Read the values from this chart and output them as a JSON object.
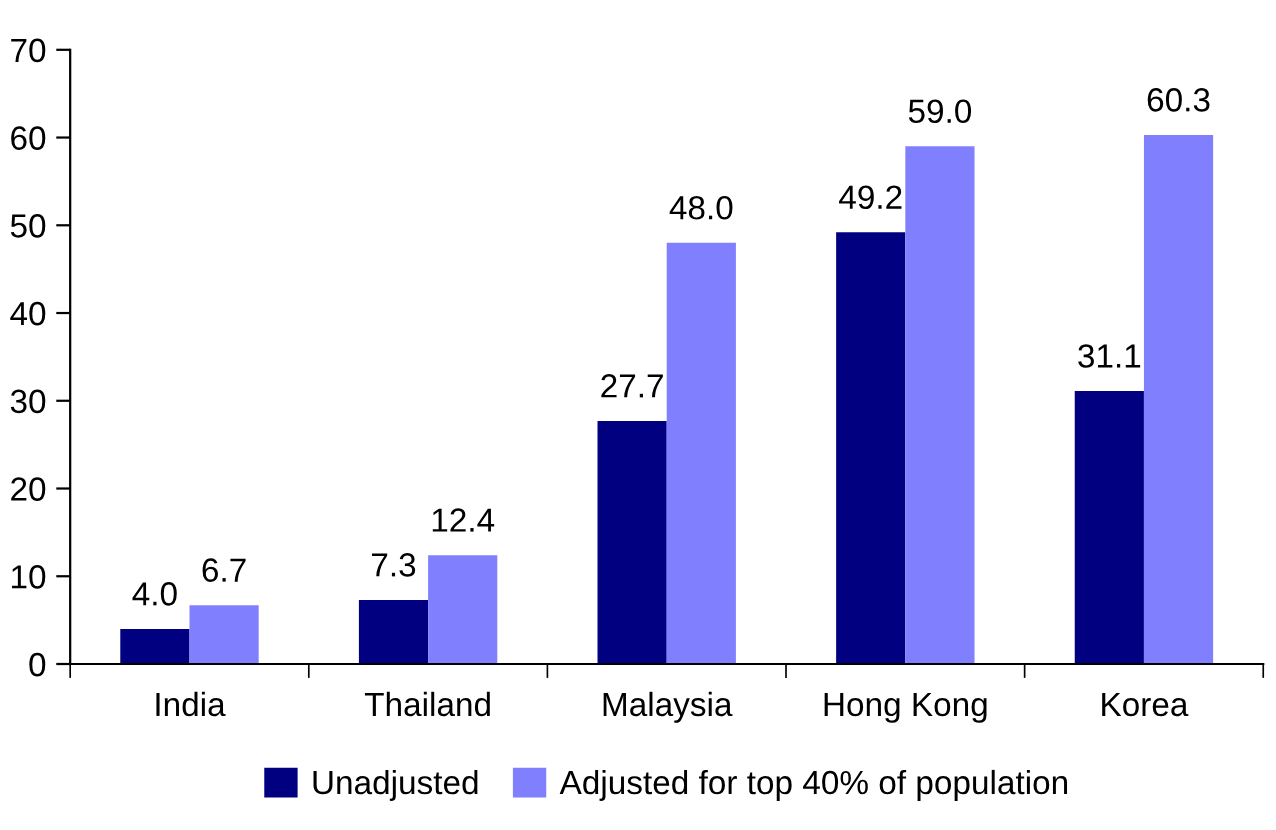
{
  "chart_data": {
    "type": "bar",
    "categories": [
      "India",
      "Thailand",
      "Malaysia",
      "Hong Kong",
      "Korea"
    ],
    "series": [
      {
        "name": "Unadjusted",
        "color": "#000080",
        "values": [
          4.0,
          7.3,
          27.7,
          49.2,
          31.1
        ],
        "value_labels": [
          "4.0",
          "7.3",
          "27.7",
          "49.2",
          "31.1"
        ]
      },
      {
        "name": "Adjusted for top 40% of population",
        "color": "#8080ff",
        "values": [
          6.7,
          12.4,
          48.0,
          59.0,
          60.3
        ],
        "value_labels": [
          "6.7",
          "12.4",
          "48.0",
          "59.0",
          "60.3"
        ]
      }
    ],
    "ylim": [
      0,
      70
    ],
    "yticks": [
      0,
      10,
      20,
      30,
      40,
      50,
      60,
      70
    ],
    "grid": false,
    "legend": "bottom"
  }
}
